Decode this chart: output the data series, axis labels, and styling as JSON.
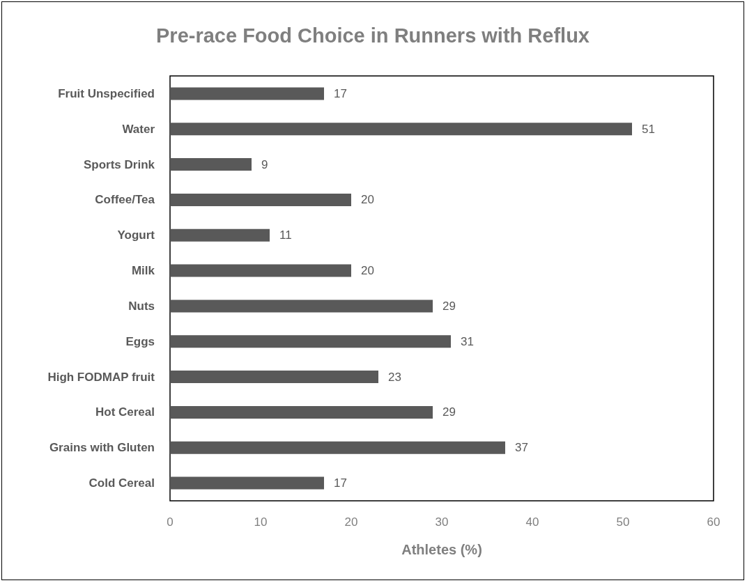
{
  "chart_data": {
    "type": "bar",
    "orientation": "horizontal",
    "title": "Pre-race Food Choice in Runners with Reflux",
    "xlabel": "Athletes (%)",
    "categories": [
      "Fruit Unspecified",
      "Water",
      "Sports Drink",
      "Coffee/Tea",
      "Yogurt",
      "Milk",
      "Nuts",
      "Eggs",
      "High FODMAP fruit",
      "Hot Cereal",
      "Grains with Gluten",
      "Cold Cereal"
    ],
    "values": [
      17,
      51,
      9,
      20,
      11,
      20,
      29,
      31,
      23,
      29,
      37,
      17
    ],
    "color": "#595959",
    "xlim": [
      0,
      60
    ],
    "xticks": [
      0,
      10,
      20,
      30,
      40,
      50,
      60
    ],
    "grid": false,
    "data_labels": true
  }
}
